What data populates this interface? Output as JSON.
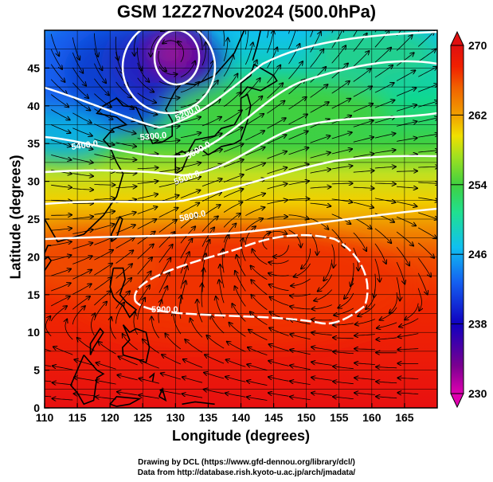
{
  "title": "GSM 12Z27Nov2024 (500.0hPa)",
  "x_axis_label": "Longitude (degrees)",
  "y_axis_label": "Latitude  (degrees)",
  "credits": {
    "line1": "Drawing by DCL (https://www.gfd-dennou.org/library/dcl/)",
    "line2": "Data from http://database.rish.kyoto-u.ac.jp/arch/jmadata/"
  },
  "chart_data": {
    "type": "map",
    "x_range": [
      110,
      170
    ],
    "y_range": [
      0,
      50
    ],
    "x_ticks": [
      110,
      115,
      120,
      125,
      130,
      135,
      140,
      145,
      150,
      155,
      160,
      165
    ],
    "y_ticks": [
      0,
      5,
      10,
      15,
      20,
      25,
      30,
      35,
      40,
      45
    ],
    "grid": true,
    "colorbar": {
      "min": 230,
      "max": 270,
      "ticks": [
        230,
        238,
        246,
        254,
        262,
        270
      ],
      "colors": [
        "#e000b0",
        "#7a0090",
        "#1000c0",
        "#1460f0",
        "#10c0f0",
        "#20e090",
        "#40d040",
        "#a0e020",
        "#f0e000",
        "#f0a000",
        "#f06000",
        "#f02000",
        "#e01010"
      ],
      "placement": "right"
    },
    "contour_labels": [
      "5200.0",
      "5300.0",
      "5400.0",
      "5500.0",
      "5600.0",
      "5800.0",
      "5900.0"
    ],
    "low_center": {
      "lon": 129.5,
      "lat": 46.5
    },
    "high_center": {
      "lon": 145.0,
      "lat": 22.0
    }
  },
  "colors": {
    "contour": "#ffffff",
    "coast": "#000000",
    "streamline": "#000000"
  }
}
